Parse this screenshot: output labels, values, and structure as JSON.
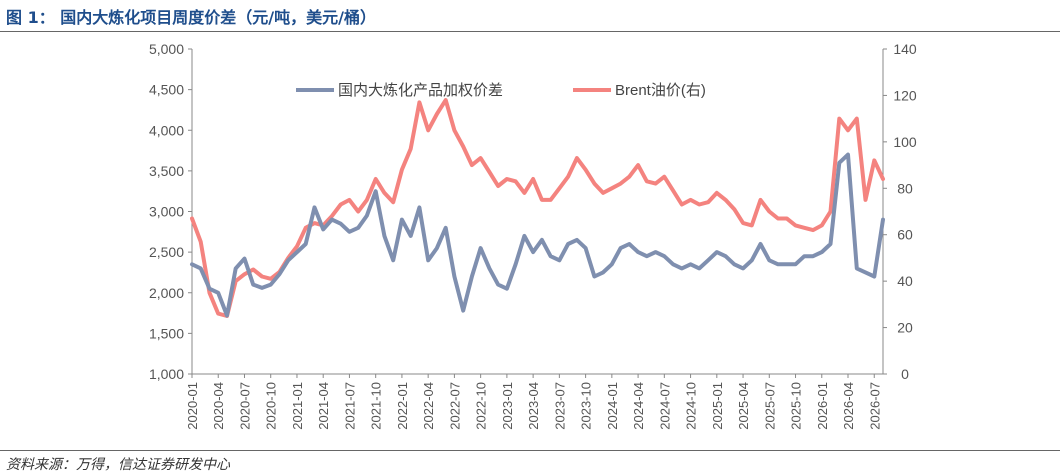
{
  "figure": {
    "title": "图 1：  国内大炼化项目周度价差（元/吨，美元/桶）",
    "source": "资料来源：万得，信达证券研发中心"
  },
  "chart_data": {
    "type": "line",
    "title": "国内大炼化项目周度价差（元/吨，美元/桶）",
    "x_tick_labels": [
      "2020-01",
      "2020-04",
      "2020-07",
      "2020-10",
      "2021-01",
      "2021-04",
      "2021-07",
      "2021-10",
      "2022-01",
      "2022-04",
      "2022-07",
      "2022-10",
      "2023-01",
      "2023-04",
      "2023-07",
      "2023-10",
      "2024-01",
      "2024-04",
      "2024-07",
      "2024-10",
      "2025-01",
      "2025-04",
      "2025-07",
      "2025-10",
      "2026-01",
      "2026-04",
      "2026-07"
    ],
    "x_range": [
      "2020-01",
      "2026-08"
    ],
    "y_left": {
      "min": 1000,
      "max": 5000,
      "step": 500,
      "tick_labels": [
        "1,000",
        "1,500",
        "2,000",
        "2,500",
        "3,000",
        "3,500",
        "4,000",
        "4,500",
        "5,000"
      ]
    },
    "y_right": {
      "min": 0,
      "max": 140,
      "step": 20,
      "tick_labels": [
        "0",
        "20",
        "40",
        "60",
        "80",
        "100",
        "120",
        "140"
      ]
    },
    "legend_position": "top",
    "grid": false,
    "series": [
      {
        "name": "国内大炼化产品加权价差",
        "axis": "left",
        "color": "#7f8faf",
        "points": [
          [
            "2020-01",
            2350
          ],
          [
            "2020-02",
            2300
          ],
          [
            "2020-03",
            2050
          ],
          [
            "2020-04",
            2000
          ],
          [
            "2020-05",
            1720
          ],
          [
            "2020-06",
            2300
          ],
          [
            "2020-07",
            2420
          ],
          [
            "2020-08",
            2100
          ],
          [
            "2020-09",
            2060
          ],
          [
            "2020-10",
            2100
          ],
          [
            "2020-11",
            2230
          ],
          [
            "2020-12",
            2400
          ],
          [
            "2021-01",
            2500
          ],
          [
            "2021-02",
            2600
          ],
          [
            "2021-03",
            3050
          ],
          [
            "2021-04",
            2780
          ],
          [
            "2021-05",
            2900
          ],
          [
            "2021-06",
            2850
          ],
          [
            "2021-07",
            2750
          ],
          [
            "2021-08",
            2800
          ],
          [
            "2021-09",
            2950
          ],
          [
            "2021-10",
            3250
          ],
          [
            "2021-11",
            2700
          ],
          [
            "2021-12",
            2400
          ],
          [
            "2022-01",
            2900
          ],
          [
            "2022-02",
            2700
          ],
          [
            "2022-03",
            3050
          ],
          [
            "2022-04",
            2400
          ],
          [
            "2022-05",
            2550
          ],
          [
            "2022-06",
            2800
          ],
          [
            "2022-07",
            2200
          ],
          [
            "2022-08",
            1780
          ],
          [
            "2022-09",
            2200
          ],
          [
            "2022-10",
            2550
          ],
          [
            "2022-11",
            2300
          ],
          [
            "2022-12",
            2100
          ],
          [
            "2023-01",
            2050
          ],
          [
            "2023-02",
            2350
          ],
          [
            "2023-03",
            2700
          ],
          [
            "2023-04",
            2500
          ],
          [
            "2023-05",
            2650
          ],
          [
            "2023-06",
            2450
          ],
          [
            "2023-07",
            2400
          ],
          [
            "2023-08",
            2600
          ],
          [
            "2023-09",
            2650
          ],
          [
            "2023-10",
            2550
          ],
          [
            "2023-11",
            2200
          ],
          [
            "2023-12",
            2250
          ],
          [
            "2024-01",
            2350
          ],
          [
            "2024-02",
            2550
          ],
          [
            "2024-03",
            2600
          ],
          [
            "2024-04",
            2500
          ],
          [
            "2024-05",
            2450
          ],
          [
            "2024-06",
            2500
          ],
          [
            "2024-07",
            2450
          ],
          [
            "2024-08",
            2350
          ],
          [
            "2024-09",
            2300
          ],
          [
            "2024-10",
            2350
          ],
          [
            "2024-11",
            2300
          ],
          [
            "2024-12",
            2400
          ],
          [
            "2025-01",
            2500
          ],
          [
            "2025-02",
            2450
          ],
          [
            "2025-03",
            2350
          ],
          [
            "2025-04",
            2300
          ],
          [
            "2025-05",
            2400
          ],
          [
            "2025-06",
            2600
          ],
          [
            "2025-07",
            2400
          ],
          [
            "2025-08",
            2350
          ],
          [
            "2025-09",
            2350
          ],
          [
            "2025-10",
            2350
          ],
          [
            "2025-11",
            2450
          ],
          [
            "2025-12",
            2450
          ],
          [
            "2026-01",
            2500
          ],
          [
            "2026-02",
            2600
          ],
          [
            "2026-03",
            3600
          ],
          [
            "2026-04",
            3700
          ],
          [
            "2026-05",
            2300
          ],
          [
            "2026-06",
            2250
          ],
          [
            "2026-07",
            2200
          ],
          [
            "2026-08",
            2900
          ]
        ]
      },
      {
        "name": "Brent油价(右)",
        "axis": "right",
        "color": "#f4837f",
        "points": [
          [
            "2020-01",
            67
          ],
          [
            "2020-02",
            57
          ],
          [
            "2020-03",
            35
          ],
          [
            "2020-04",
            26
          ],
          [
            "2020-05",
            25
          ],
          [
            "2020-06",
            40
          ],
          [
            "2020-07",
            43
          ],
          [
            "2020-08",
            45
          ],
          [
            "2020-09",
            42
          ],
          [
            "2020-10",
            41
          ],
          [
            "2020-11",
            44
          ],
          [
            "2020-12",
            50
          ],
          [
            "2021-01",
            55
          ],
          [
            "2021-02",
            63
          ],
          [
            "2021-03",
            65
          ],
          [
            "2021-04",
            64
          ],
          [
            "2021-05",
            68
          ],
          [
            "2021-06",
            73
          ],
          [
            "2021-07",
            75
          ],
          [
            "2021-08",
            70
          ],
          [
            "2021-09",
            75
          ],
          [
            "2021-10",
            84
          ],
          [
            "2021-11",
            78
          ],
          [
            "2021-12",
            74
          ],
          [
            "2022-01",
            88
          ],
          [
            "2022-02",
            97
          ],
          [
            "2022-03",
            117
          ],
          [
            "2022-04",
            105
          ],
          [
            "2022-05",
            112
          ],
          [
            "2022-06",
            118
          ],
          [
            "2022-07",
            105
          ],
          [
            "2022-08",
            98
          ],
          [
            "2022-09",
            90
          ],
          [
            "2022-10",
            93
          ],
          [
            "2022-11",
            87
          ],
          [
            "2022-12",
            81
          ],
          [
            "2023-01",
            84
          ],
          [
            "2023-02",
            83
          ],
          [
            "2023-03",
            78
          ],
          [
            "2023-04",
            84
          ],
          [
            "2023-05",
            75
          ],
          [
            "2023-06",
            75
          ],
          [
            "2023-07",
            80
          ],
          [
            "2023-08",
            85
          ],
          [
            "2023-09",
            93
          ],
          [
            "2023-10",
            88
          ],
          [
            "2023-11",
            82
          ],
          [
            "2023-12",
            78
          ],
          [
            "2024-01",
            80
          ],
          [
            "2024-02",
            82
          ],
          [
            "2024-03",
            85
          ],
          [
            "2024-04",
            90
          ],
          [
            "2024-05",
            83
          ],
          [
            "2024-06",
            82
          ],
          [
            "2024-07",
            85
          ],
          [
            "2024-08",
            79
          ],
          [
            "2024-09",
            73
          ],
          [
            "2024-10",
            75
          ],
          [
            "2024-11",
            73
          ],
          [
            "2024-12",
            74
          ],
          [
            "2025-01",
            78
          ],
          [
            "2025-02",
            75
          ],
          [
            "2025-03",
            71
          ],
          [
            "2025-04",
            65
          ],
          [
            "2025-05",
            64
          ],
          [
            "2025-06",
            75
          ],
          [
            "2025-07",
            70
          ],
          [
            "2025-08",
            67
          ],
          [
            "2025-09",
            67
          ],
          [
            "2025-10",
            64
          ],
          [
            "2025-11",
            63
          ],
          [
            "2025-12",
            62
          ],
          [
            "2026-01",
            64
          ],
          [
            "2026-02",
            70
          ],
          [
            "2026-03",
            110
          ],
          [
            "2026-04",
            105
          ],
          [
            "2026-05",
            110
          ],
          [
            "2026-06",
            75
          ],
          [
            "2026-07",
            92
          ],
          [
            "2026-08",
            84
          ]
        ]
      }
    ]
  }
}
